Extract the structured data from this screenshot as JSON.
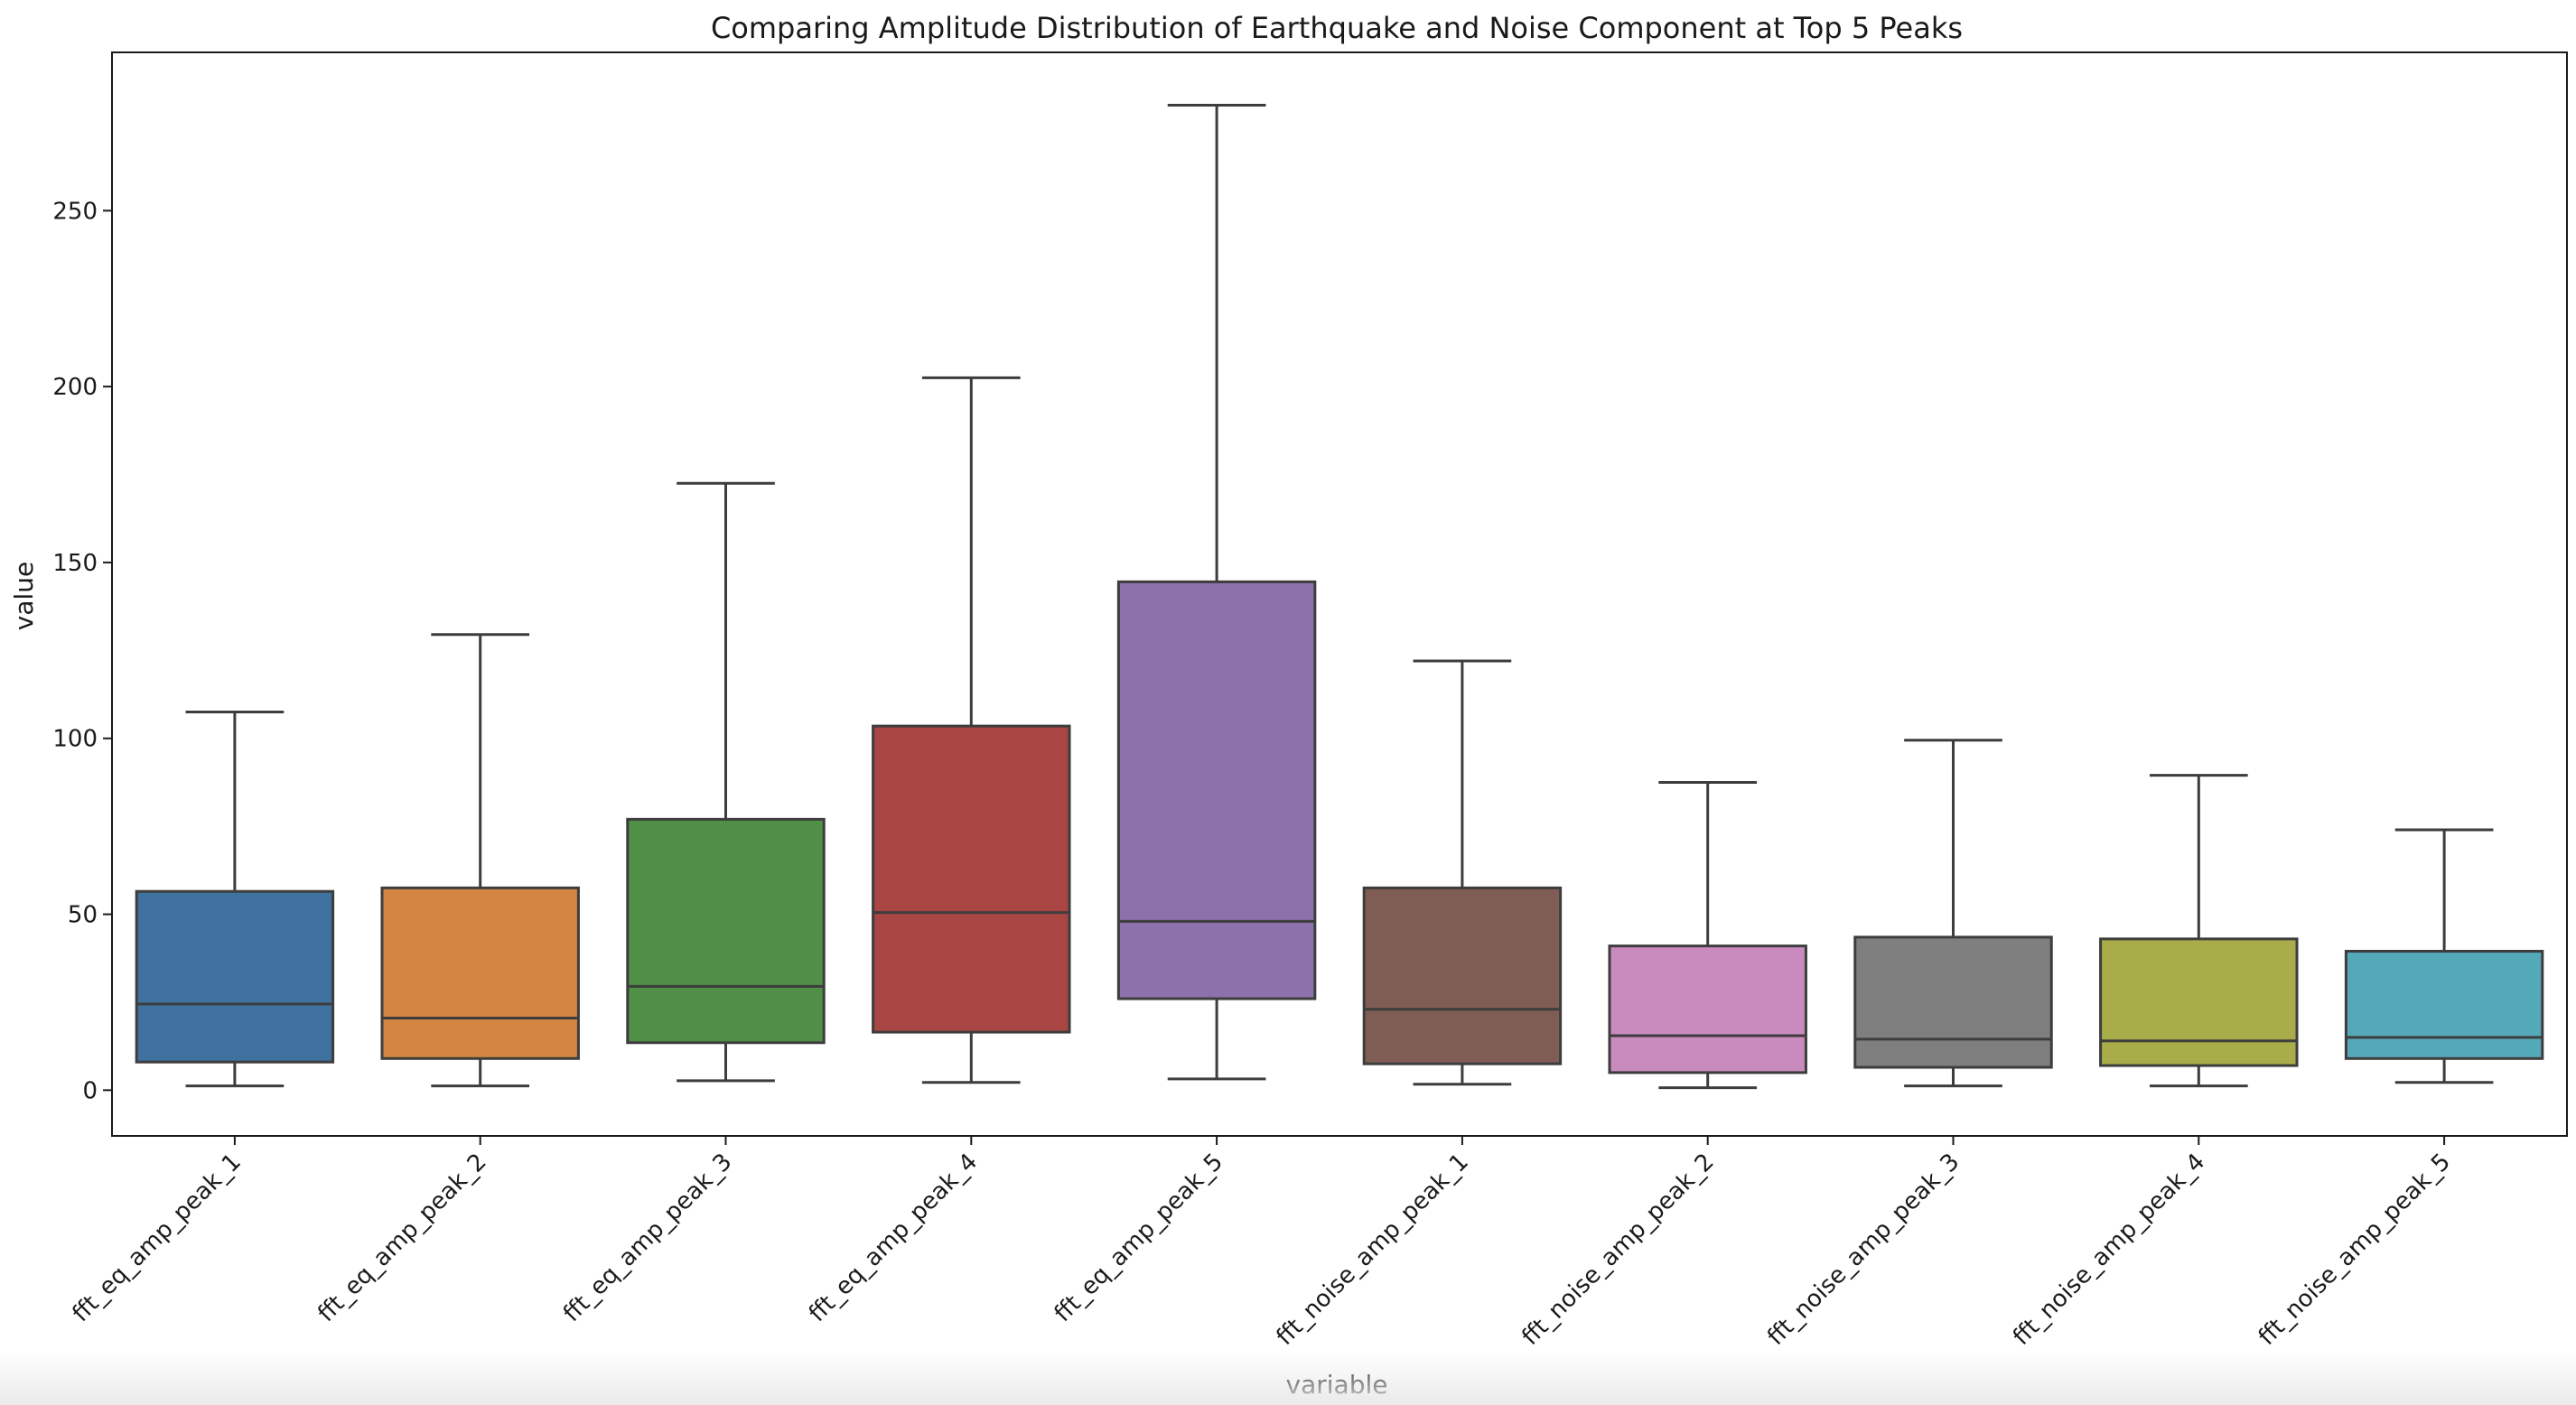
{
  "chart_data": {
    "type": "box",
    "title": "Comparing Amplitude Distribution of Earthquake and Noise Component at Top 5 Peaks",
    "xlabel": "variable",
    "ylabel": "value",
    "ylim": [
      -13,
      295
    ],
    "yticks": [
      0,
      50,
      100,
      150,
      200,
      250
    ],
    "ytick_labels": [
      "0",
      "50",
      "100",
      "150",
      "200",
      "250"
    ],
    "grid": false,
    "categories": [
      "fft_eq_amp_peak_1",
      "fft_eq_amp_peak_2",
      "fft_eq_amp_peak_3",
      "fft_eq_amp_peak_4",
      "fft_eq_amp_peak_5",
      "fft_noise_amp_peak_1",
      "fft_noise_amp_peak_2",
      "fft_noise_amp_peak_3",
      "fft_noise_amp_peak_4",
      "fft_noise_amp_peak_5"
    ],
    "boxes": [
      {
        "whisker_low": 1.2,
        "q1": 8.0,
        "median": 24.5,
        "q3": 56.5,
        "whisker_high": 107.5,
        "color": "#3f729e"
      },
      {
        "whisker_low": 1.2,
        "q1": 9.0,
        "median": 20.5,
        "q3": 57.5,
        "whisker_high": 129.5,
        "color": "#d58542"
      },
      {
        "whisker_low": 2.7,
        "q1": 13.5,
        "median": 29.5,
        "q3": 77.0,
        "whisker_high": 172.5,
        "color": "#4f8f46"
      },
      {
        "whisker_low": 2.2,
        "q1": 16.5,
        "median": 50.5,
        "q3": 103.5,
        "whisker_high": 202.5,
        "color": "#a94543"
      },
      {
        "whisker_low": 3.2,
        "q1": 26.0,
        "median": 48.0,
        "q3": 144.5,
        "whisker_high": 280.0,
        "color": "#8c71ab"
      },
      {
        "whisker_low": 1.7,
        "q1": 7.5,
        "median": 23.0,
        "q3": 57.5,
        "whisker_high": 122.0,
        "color": "#7f5d54"
      },
      {
        "whisker_low": 0.7,
        "q1": 5.0,
        "median": 15.5,
        "q3": 41.0,
        "whisker_high": 87.5,
        "color": "#c98abd"
      },
      {
        "whisker_low": 1.2,
        "q1": 6.5,
        "median": 14.5,
        "q3": 43.5,
        "whisker_high": 99.5,
        "color": "#7f7f7f"
      },
      {
        "whisker_low": 1.2,
        "q1": 7.0,
        "median": 14.0,
        "q3": 43.0,
        "whisker_high": 89.5,
        "color": "#a8ad4a"
      },
      {
        "whisker_low": 2.2,
        "q1": 9.0,
        "median": 15.0,
        "q3": 39.5,
        "whisker_high": 74.0,
        "color": "#54a9b9"
      }
    ],
    "line_color": "#3d3d3d"
  }
}
